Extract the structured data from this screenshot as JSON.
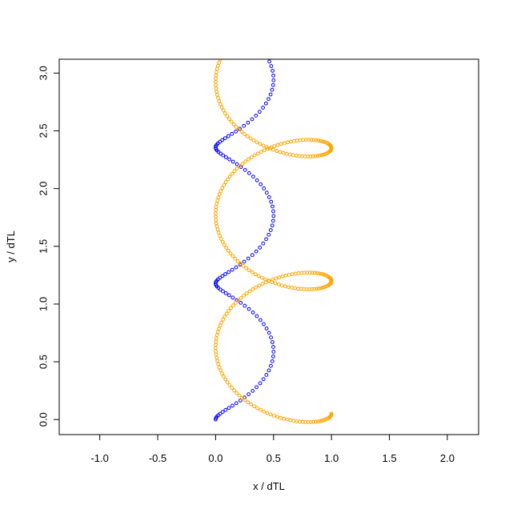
{
  "chart_data": {
    "type": "scatter",
    "title": "",
    "xlabel": "x / dTL",
    "ylabel": "y / dTL",
    "xlim": [
      -1.35,
      2.27
    ],
    "ylim": [
      -0.13,
      3.12
    ],
    "xticks": [
      -1.0,
      -0.5,
      0.0,
      0.5,
      1.0,
      1.5,
      2.0
    ],
    "xtick_labels": [
      "-1.0",
      "-0.5",
      "0.0",
      "0.5",
      "1.0",
      "1.5",
      "2.0"
    ],
    "yticks": [
      0.0,
      0.5,
      1.0,
      1.5,
      2.0,
      2.5,
      3.0
    ],
    "ytick_labels": [
      "0.0",
      "0.5",
      "1.0",
      "1.5",
      "2.0",
      "2.5",
      "3.0"
    ],
    "grid": false,
    "legend": "none",
    "marker": "open-circle",
    "series": [
      {
        "color": "#0000ff",
        "curve": "cycloid-cusps",
        "x_range": [
          0.0,
          0.5
        ],
        "cusp_y": [
          0.0,
          1.178,
          2.356
        ],
        "point_count": 120
      },
      {
        "color": "#ffa500",
        "curve": "looped-trochoid",
        "x_range": [
          0.0,
          1.0
        ],
        "start": [
          1.0,
          0.05
        ],
        "loop_centers_y": [
          0.6,
          1.75,
          2.9
        ],
        "point_count": 310
      }
    ]
  }
}
